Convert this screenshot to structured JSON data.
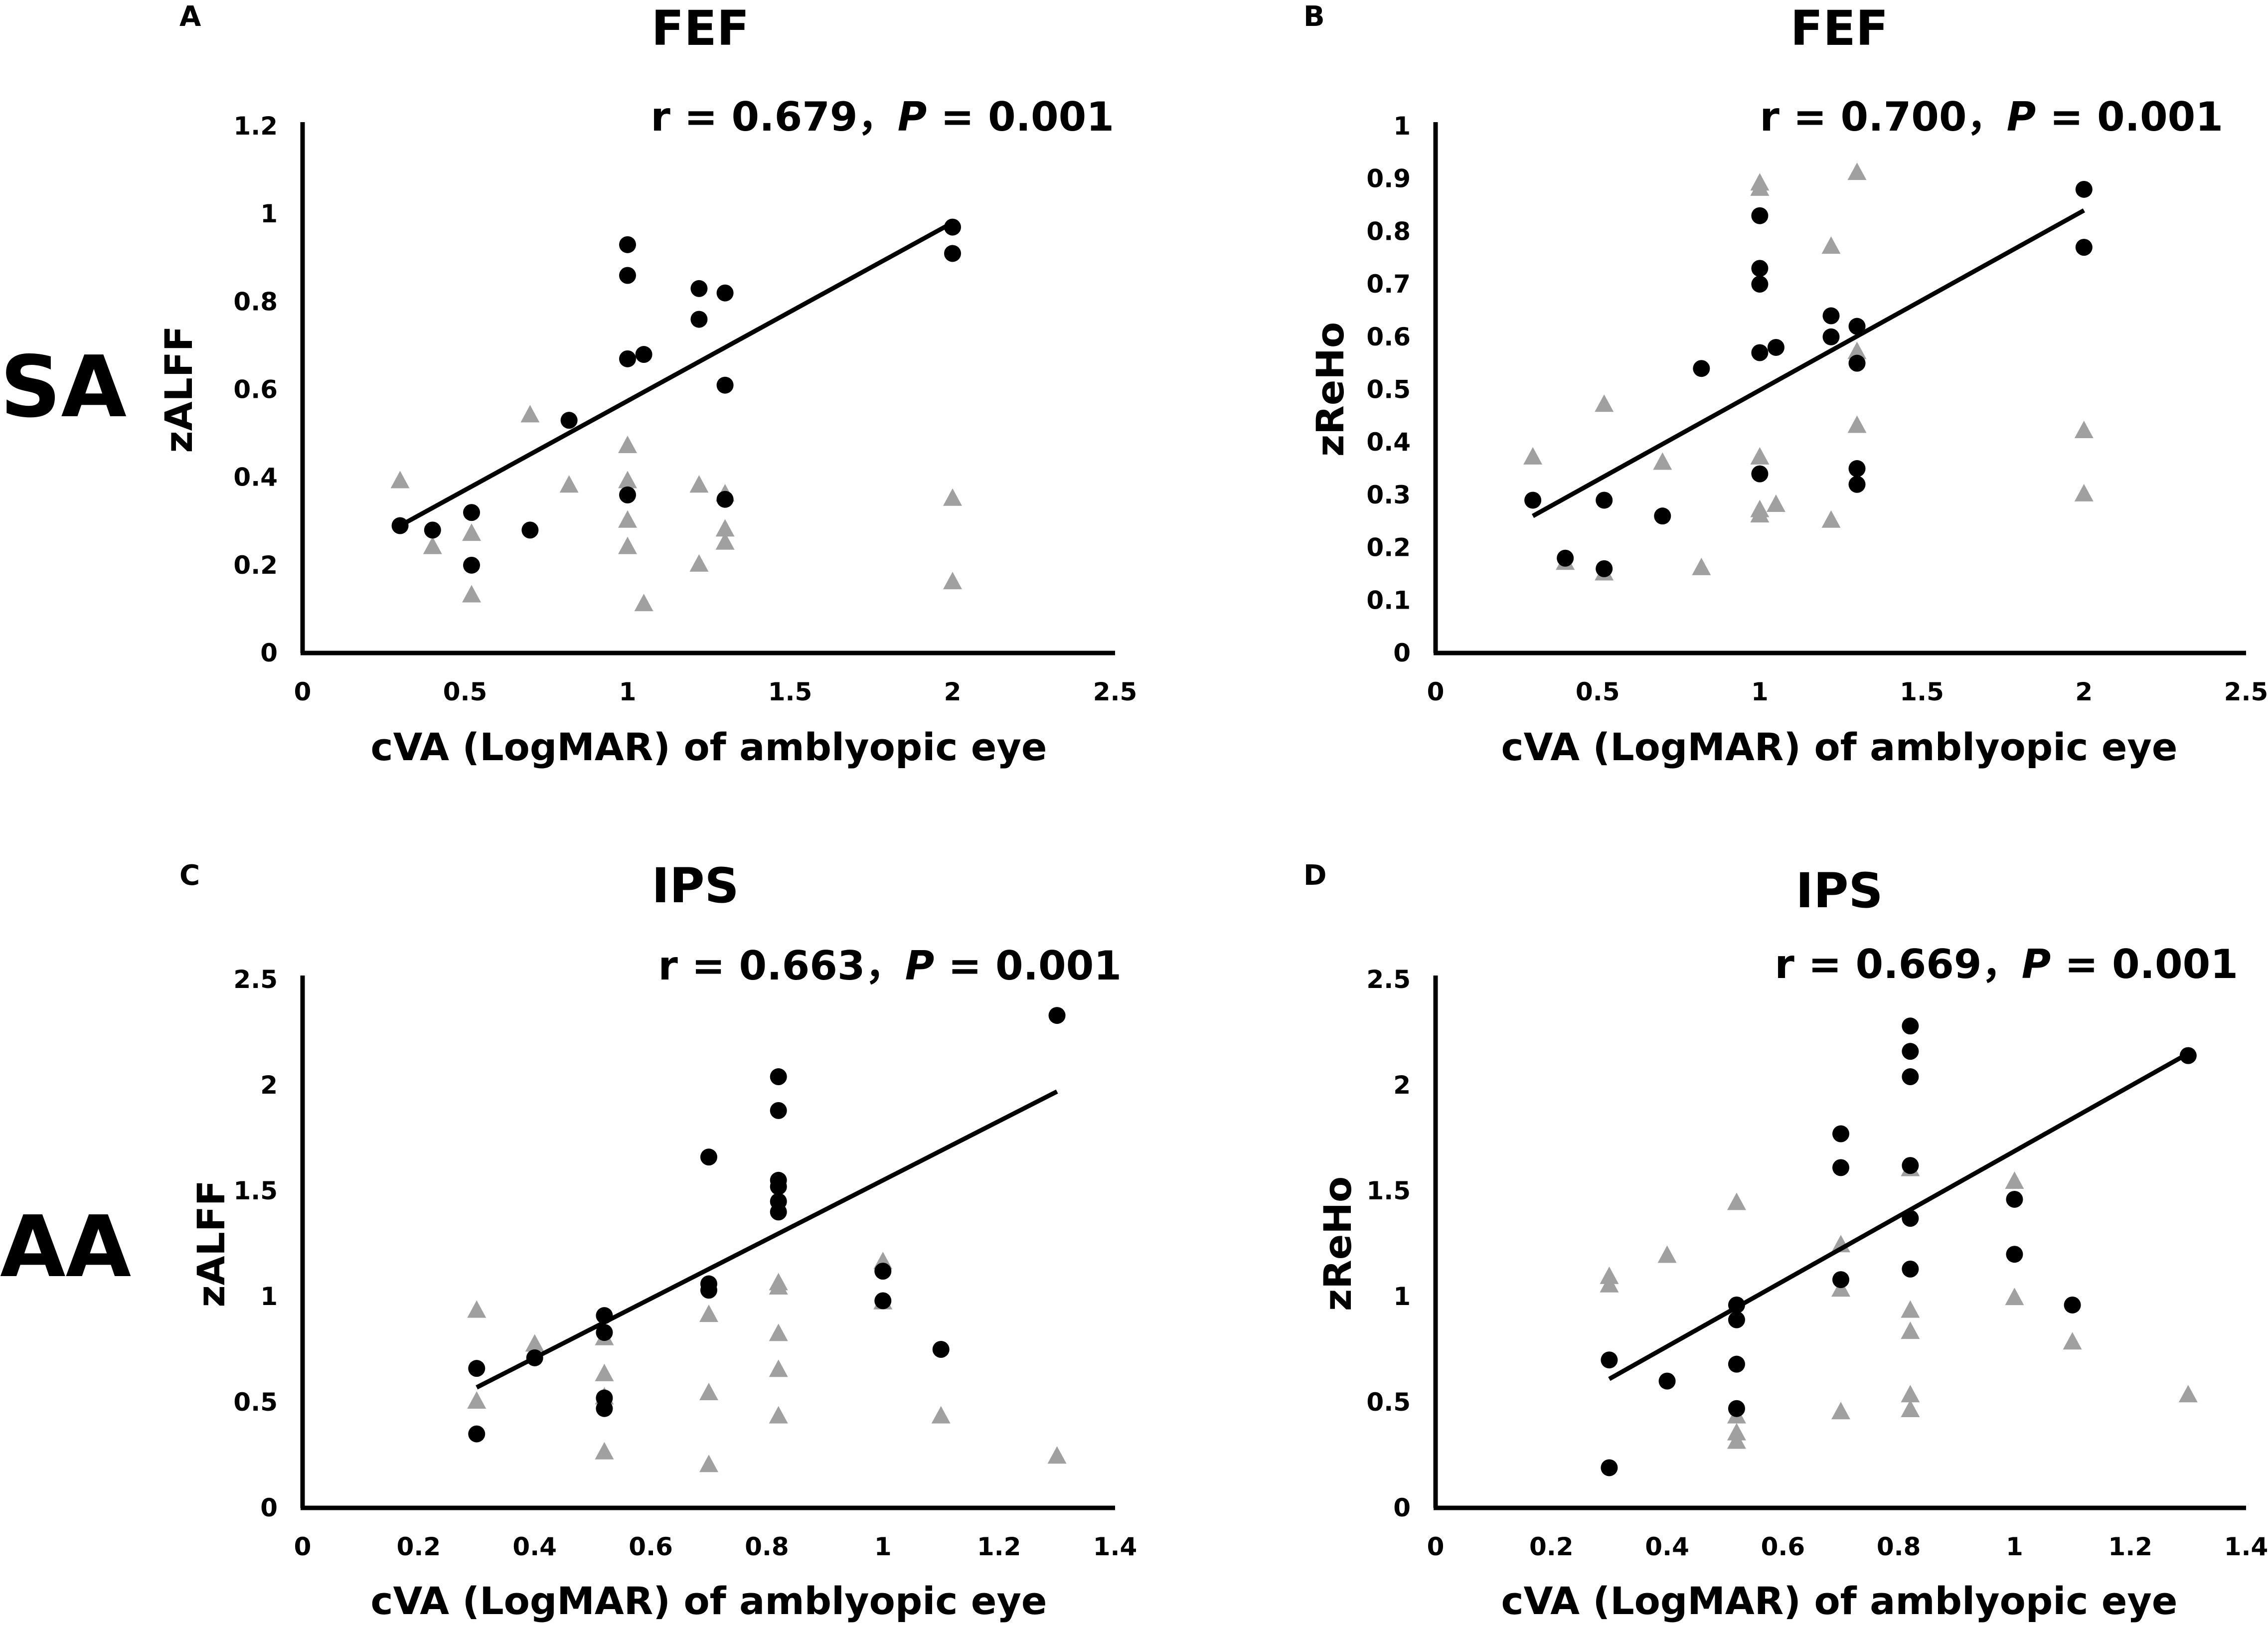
{
  "row_labels": [
    "SA",
    "AA"
  ],
  "colors": {
    "circles": "#000000",
    "triangles": "#a0a0a0",
    "axes": "#000000",
    "fit": "#000000"
  },
  "chart_data": [
    {
      "type": "scatter",
      "panel": "A",
      "title": "FEF",
      "annotation": {
        "r_text": "r = 0.679，",
        "p_symbol": "P",
        "p_text": " = 0.001"
      },
      "xlabel": "cVA (LogMAR) of amblyopic eye",
      "ylabel": "zALFF",
      "xlim": [
        0,
        2.5
      ],
      "ylim": [
        0,
        1.2
      ],
      "xticks": [
        "0",
        "0.5",
        "1",
        "1.5",
        "2",
        "2.5"
      ],
      "yticks": [
        "0",
        "0.2",
        "0.4",
        "0.6",
        "0.8",
        "1",
        "1.2"
      ],
      "series": [
        {
          "name": "circles",
          "marker": "circle",
          "x": [
            0.3,
            0.4,
            0.52,
            0.52,
            0.7,
            0.82,
            1.0,
            1.0,
            1.0,
            1.0,
            1.05,
            1.22,
            1.22,
            1.3,
            1.3,
            1.3,
            2.0,
            2.0
          ],
          "y": [
            0.29,
            0.28,
            0.32,
            0.2,
            0.28,
            0.53,
            0.93,
            0.86,
            0.67,
            0.36,
            0.68,
            0.83,
            0.76,
            0.82,
            0.61,
            0.35,
            0.97,
            0.91
          ]
        },
        {
          "name": "triangles",
          "marker": "triangle",
          "x": [
            0.3,
            0.4,
            0.52,
            0.52,
            0.7,
            0.82,
            1.0,
            1.0,
            1.0,
            1.0,
            1.05,
            1.22,
            1.22,
            1.3,
            1.3,
            1.3,
            2.0,
            2.0
          ],
          "y": [
            0.39,
            0.24,
            0.27,
            0.13,
            0.54,
            0.38,
            0.47,
            0.39,
            0.3,
            0.24,
            0.11,
            0.38,
            0.2,
            0.36,
            0.28,
            0.25,
            0.35,
            0.16
          ]
        }
      ],
      "fit_line": {
        "x": [
          0.3,
          2.0
        ],
        "y": [
          0.29,
          0.98
        ]
      }
    },
    {
      "type": "scatter",
      "panel": "B",
      "title": "FEF",
      "annotation": {
        "r_text": "r = 0.700，",
        "p_symbol": "P",
        "p_text": " = 0.001"
      },
      "xlabel": "cVA (LogMAR) of amblyopic eye",
      "ylabel": "zReHo",
      "xlim": [
        0,
        2.5
      ],
      "ylim": [
        0,
        1
      ],
      "xticks": [
        "0",
        "0.5",
        "1",
        "1.5",
        "2",
        "2.5"
      ],
      "yticks": [
        "0",
        "0.1",
        "0.2",
        "0.3",
        "0.4",
        "0.5",
        "0.6",
        "0.7",
        "0.8",
        "0.9",
        "1"
      ],
      "series": [
        {
          "name": "circles",
          "marker": "circle",
          "x": [
            0.3,
            0.4,
            0.52,
            0.52,
            0.7,
            0.82,
            1.0,
            1.0,
            1.0,
            1.0,
            1.0,
            1.05,
            1.22,
            1.22,
            1.3,
            1.3,
            1.3,
            1.3,
            2.0,
            2.0
          ],
          "y": [
            0.29,
            0.18,
            0.29,
            0.16,
            0.26,
            0.54,
            0.83,
            0.73,
            0.7,
            0.57,
            0.34,
            0.58,
            0.64,
            0.6,
            0.62,
            0.55,
            0.35,
            0.32,
            0.88,
            0.77
          ]
        },
        {
          "name": "triangles",
          "marker": "triangle",
          "x": [
            0.3,
            0.4,
            0.52,
            0.52,
            0.7,
            0.82,
            1.0,
            1.0,
            1.0,
            1.0,
            1.0,
            1.05,
            1.22,
            1.22,
            1.3,
            1.3,
            1.3,
            2.0,
            2.0
          ],
          "y": [
            0.37,
            0.17,
            0.47,
            0.15,
            0.36,
            0.16,
            0.89,
            0.88,
            0.37,
            0.27,
            0.26,
            0.28,
            0.77,
            0.25,
            0.91,
            0.57,
            0.43,
            0.42,
            0.3
          ]
        }
      ],
      "fit_line": {
        "x": [
          0.3,
          2.0
        ],
        "y": [
          0.26,
          0.84
        ]
      }
    },
    {
      "type": "scatter",
      "panel": "C",
      "title": "IPS",
      "annotation": {
        "r_text": "r = 0.663，",
        "p_symbol": "P",
        "p_text": " = 0.001"
      },
      "xlabel": "cVA (LogMAR) of amblyopic eye",
      "ylabel": "zALFF",
      "xlim": [
        0,
        1.4
      ],
      "ylim": [
        0,
        2.5
      ],
      "xticks": [
        "0",
        "0.2",
        "0.4",
        "0.6",
        "0.8",
        "1",
        "1.2",
        "1.4"
      ],
      "yticks": [
        "0",
        "0.5",
        "1",
        "1.5",
        "2",
        "2.5"
      ],
      "series": [
        {
          "name": "circles",
          "marker": "circle",
          "x": [
            0.3,
            0.3,
            0.4,
            0.52,
            0.52,
            0.52,
            0.52,
            0.7,
            0.7,
            0.7,
            0.82,
            0.82,
            0.82,
            0.82,
            0.82,
            0.82,
            1.0,
            1.0,
            1.1,
            1.3
          ],
          "y": [
            0.66,
            0.35,
            0.71,
            0.91,
            0.83,
            0.52,
            0.47,
            1.66,
            1.06,
            1.03,
            2.04,
            1.88,
            1.55,
            1.52,
            1.45,
            1.4,
            1.12,
            0.98,
            0.75,
            2.33
          ]
        },
        {
          "name": "triangles",
          "marker": "triangle",
          "x": [
            0.3,
            0.3,
            0.4,
            0.52,
            0.52,
            0.52,
            0.52,
            0.7,
            0.7,
            0.7,
            0.82,
            0.82,
            0.82,
            0.82,
            0.82,
            1.0,
            1.0,
            1.1,
            1.3
          ],
          "y": [
            0.93,
            0.5,
            0.77,
            0.8,
            0.63,
            0.52,
            0.26,
            0.91,
            0.54,
            0.2,
            1.06,
            1.04,
            0.82,
            0.65,
            0.43,
            1.16,
            0.97,
            0.43,
            0.24
          ]
        }
      ],
      "fit_line": {
        "x": [
          0.3,
          1.3
        ],
        "y": [
          0.57,
          1.97
        ]
      }
    },
    {
      "type": "scatter",
      "panel": "D",
      "title": "IPS",
      "annotation": {
        "r_text": "r = 0.669，",
        "p_symbol": "P",
        "p_text": " = 0.001"
      },
      "xlabel": "cVA (LogMAR) of amblyopic eye",
      "ylabel": "zReHo",
      "xlim": [
        0,
        1.4
      ],
      "ylim": [
        0,
        2.5
      ],
      "xticks": [
        "0",
        "0.2",
        "0.4",
        "0.6",
        "0.8",
        "1",
        "1.2",
        "1.4"
      ],
      "yticks": [
        "0",
        "0.5",
        "1",
        "1.5",
        "2",
        "2.5"
      ],
      "series": [
        {
          "name": "circles",
          "marker": "circle",
          "x": [
            0.3,
            0.3,
            0.4,
            0.52,
            0.52,
            0.52,
            0.52,
            0.7,
            0.7,
            0.7,
            0.82,
            0.82,
            0.82,
            0.82,
            0.82,
            0.82,
            1.0,
            1.0,
            1.1,
            1.3
          ],
          "y": [
            0.7,
            0.19,
            0.6,
            0.96,
            0.89,
            0.68,
            0.47,
            1.77,
            1.61,
            1.08,
            2.28,
            2.16,
            2.04,
            1.62,
            1.37,
            1.13,
            1.46,
            1.2,
            0.96,
            2.14
          ]
        },
        {
          "name": "triangles",
          "marker": "triangle",
          "x": [
            0.3,
            0.3,
            0.4,
            0.52,
            0.52,
            0.52,
            0.52,
            0.7,
            0.7,
            0.7,
            0.82,
            0.82,
            0.82,
            0.82,
            0.82,
            1.0,
            1.0,
            1.1,
            1.3
          ],
          "y": [
            1.09,
            1.05,
            1.19,
            1.44,
            0.43,
            0.35,
            0.31,
            1.24,
            1.03,
            0.45,
            1.6,
            0.93,
            0.83,
            0.53,
            0.46,
            1.54,
            0.99,
            0.78,
            0.53
          ]
        }
      ],
      "fit_line": {
        "x": [
          0.3,
          1.3
        ],
        "y": [
          0.61,
          2.15
        ]
      }
    }
  ]
}
